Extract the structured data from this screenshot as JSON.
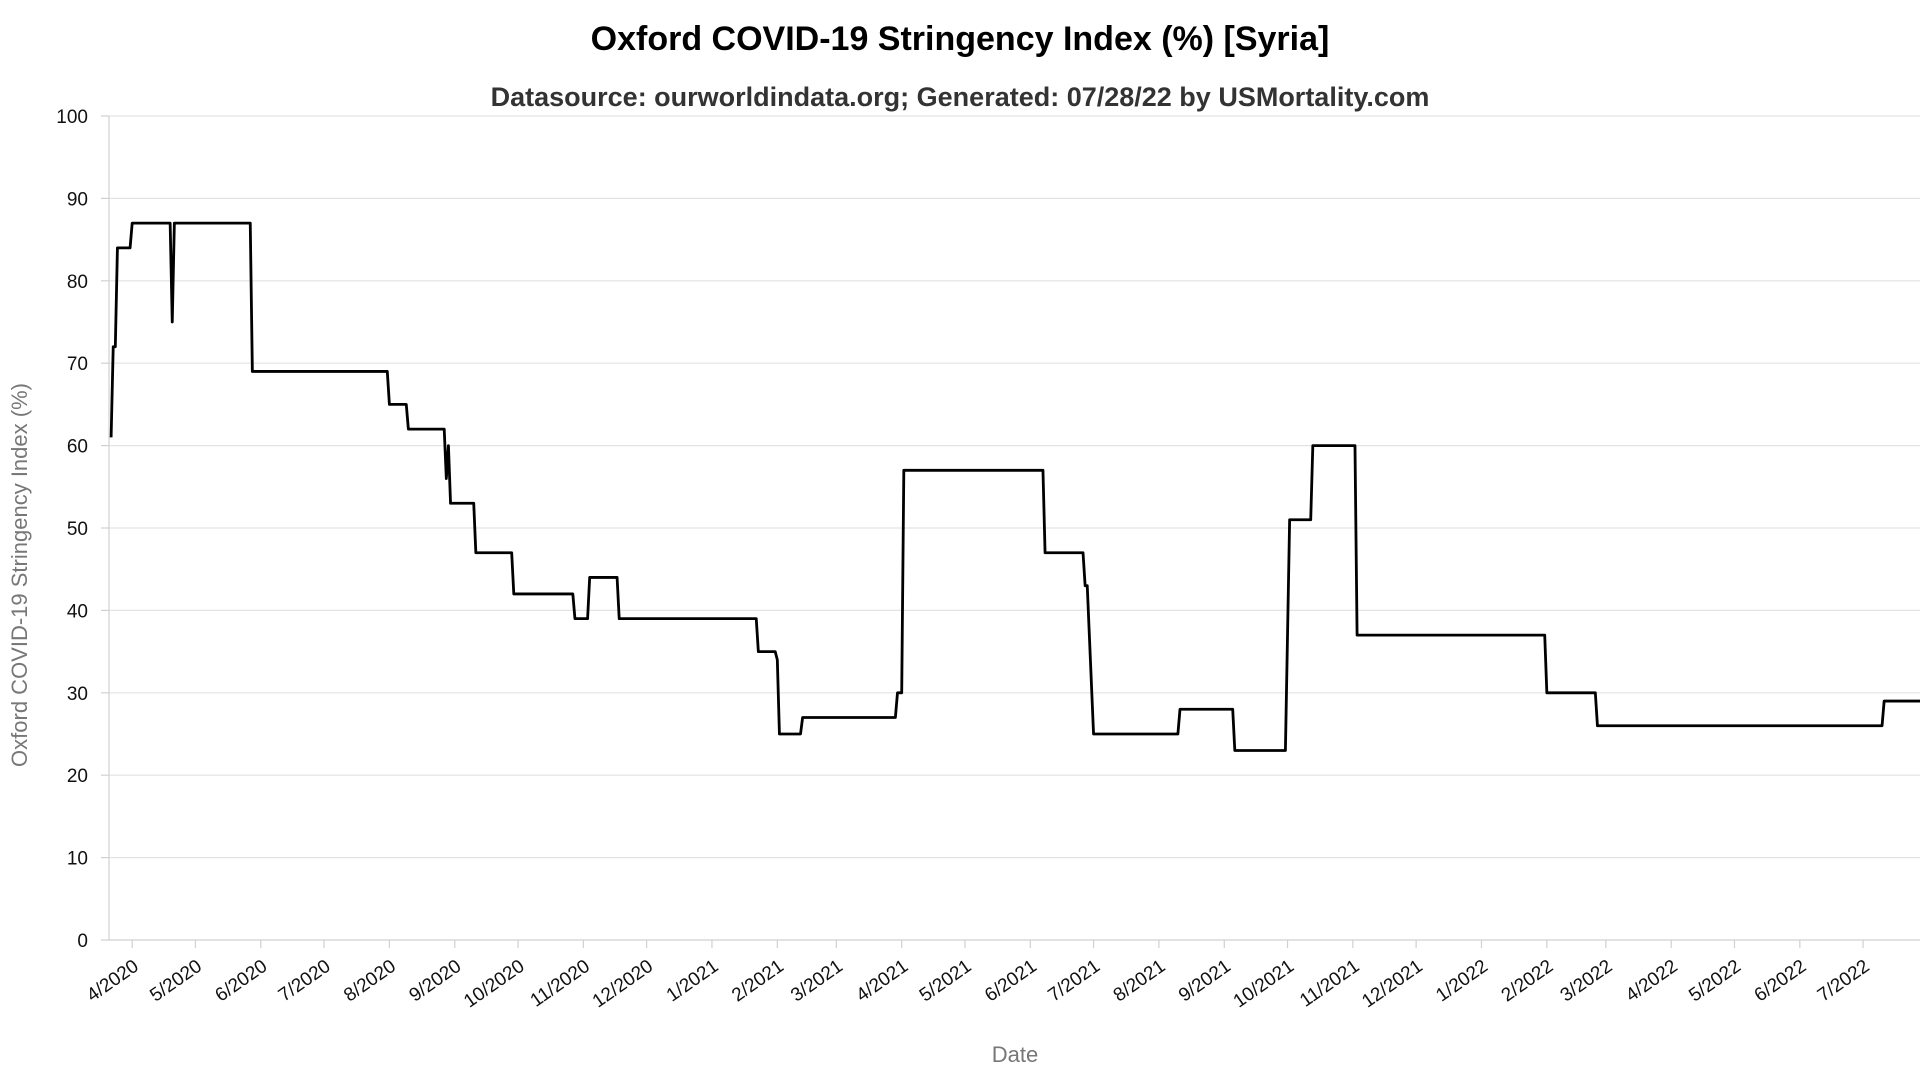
{
  "chart_data": {
    "type": "line",
    "title": "Oxford COVID-19 Stringency Index (%) [Syria]",
    "subtitle": "Datasource: ourworldindata.org; Generated: 07/28/22 by USMortality.com",
    "xlabel": "Date",
    "ylabel": "Oxford COVID-19 Stringency Index (%)",
    "ylim": [
      0,
      100
    ],
    "xlim": [
      "2020-03-21",
      "2022-07-28"
    ],
    "y_ticks": [
      "0",
      "10",
      "20",
      "30",
      "40",
      "50",
      "60",
      "70",
      "80",
      "90",
      "100"
    ],
    "x_ticks": [
      {
        "date": "2020-04-01",
        "label": "4/2020"
      },
      {
        "date": "2020-05-01",
        "label": "5/2020"
      },
      {
        "date": "2020-06-01",
        "label": "6/2020"
      },
      {
        "date": "2020-07-01",
        "label": "7/2020"
      },
      {
        "date": "2020-08-01",
        "label": "8/2020"
      },
      {
        "date": "2020-09-01",
        "label": "9/2020"
      },
      {
        "date": "2020-10-01",
        "label": "10/2020"
      },
      {
        "date": "2020-11-01",
        "label": "11/2020"
      },
      {
        "date": "2020-12-01",
        "label": "12/2020"
      },
      {
        "date": "2021-01-01",
        "label": "1/2021"
      },
      {
        "date": "2021-02-01",
        "label": "2/2021"
      },
      {
        "date": "2021-03-01",
        "label": "3/2021"
      },
      {
        "date": "2021-04-01",
        "label": "4/2021"
      },
      {
        "date": "2021-05-01",
        "label": "5/2021"
      },
      {
        "date": "2021-06-01",
        "label": "6/2021"
      },
      {
        "date": "2021-07-01",
        "label": "7/2021"
      },
      {
        "date": "2021-08-01",
        "label": "8/2021"
      },
      {
        "date": "2021-09-01",
        "label": "9/2021"
      },
      {
        "date": "2021-10-01",
        "label": "10/2021"
      },
      {
        "date": "2021-11-01",
        "label": "11/2021"
      },
      {
        "date": "2021-12-01",
        "label": "12/2021"
      },
      {
        "date": "2022-01-01",
        "label": "1/2022"
      },
      {
        "date": "2022-02-01",
        "label": "2/2022"
      },
      {
        "date": "2022-03-01",
        "label": "3/2022"
      },
      {
        "date": "2022-04-01",
        "label": "4/2022"
      },
      {
        "date": "2022-05-01",
        "label": "5/2022"
      },
      {
        "date": "2022-06-01",
        "label": "6/2022"
      },
      {
        "date": "2022-07-01",
        "label": "7/2022"
      }
    ],
    "grid": true,
    "legend": "none",
    "series": [
      {
        "color": "#000000",
        "points": [
          [
            "2020-03-22",
            61
          ],
          [
            "2020-03-23",
            72
          ],
          [
            "2020-03-24",
            72
          ],
          [
            "2020-03-25",
            84
          ],
          [
            "2020-03-31",
            84
          ],
          [
            "2020-04-01",
            87
          ],
          [
            "2020-04-19",
            87
          ],
          [
            "2020-04-20",
            75
          ],
          [
            "2020-04-21",
            87
          ],
          [
            "2020-05-27",
            87
          ],
          [
            "2020-05-28",
            69
          ],
          [
            "2020-07-31",
            69
          ],
          [
            "2020-08-01",
            65
          ],
          [
            "2020-08-09",
            65
          ],
          [
            "2020-08-10",
            62
          ],
          [
            "2020-08-27",
            62
          ],
          [
            "2020-08-28",
            56
          ],
          [
            "2020-08-29",
            60
          ],
          [
            "2020-08-30",
            53
          ],
          [
            "2020-09-10",
            53
          ],
          [
            "2020-09-11",
            47
          ],
          [
            "2020-09-28",
            47
          ],
          [
            "2020-09-29",
            42
          ],
          [
            "2020-10-27",
            42
          ],
          [
            "2020-10-28",
            39
          ],
          [
            "2020-11-03",
            39
          ],
          [
            "2020-11-04",
            44
          ],
          [
            "2020-11-17",
            44
          ],
          [
            "2020-11-18",
            39
          ],
          [
            "2021-01-22",
            39
          ],
          [
            "2021-01-23",
            35
          ],
          [
            "2021-01-31",
            35
          ],
          [
            "2021-02-01",
            34
          ],
          [
            "2021-02-02",
            25
          ],
          [
            "2021-02-12",
            25
          ],
          [
            "2021-02-13",
            27
          ],
          [
            "2021-03-29",
            27
          ],
          [
            "2021-03-30",
            30
          ],
          [
            "2021-04-01",
            30
          ],
          [
            "2021-04-02",
            57
          ],
          [
            "2021-06-07",
            57
          ],
          [
            "2021-06-08",
            47
          ],
          [
            "2021-06-26",
            47
          ],
          [
            "2021-06-27",
            43
          ],
          [
            "2021-06-28",
            43
          ],
          [
            "2021-07-01",
            25
          ],
          [
            "2021-08-10",
            25
          ],
          [
            "2021-08-11",
            28
          ],
          [
            "2021-09-05",
            28
          ],
          [
            "2021-09-06",
            23
          ],
          [
            "2021-09-30",
            23
          ],
          [
            "2021-10-02",
            51
          ],
          [
            "2021-10-12",
            51
          ],
          [
            "2021-10-13",
            60
          ],
          [
            "2021-11-02",
            60
          ],
          [
            "2021-11-03",
            37
          ],
          [
            "2022-01-31",
            37
          ],
          [
            "2022-02-01",
            30
          ],
          [
            "2022-02-24",
            30
          ],
          [
            "2022-02-25",
            26
          ],
          [
            "2022-07-10",
            26
          ],
          [
            "2022-07-11",
            29
          ],
          [
            "2022-07-28",
            29
          ]
        ]
      }
    ]
  }
}
